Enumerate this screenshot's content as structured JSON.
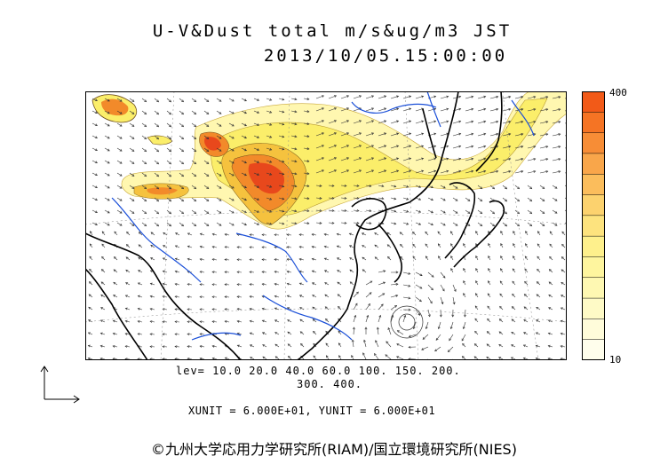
{
  "title_line1": "U-V&Dust total m/s&ug/m3 JST",
  "title_line2": "2013/10/05.15:00:00",
  "colorbar": {
    "max_label": "400",
    "min_label": "10",
    "colors": [
      "#f25a18",
      "#f57424",
      "#f78d36",
      "#f9a64a",
      "#fbbd5c",
      "#fcd26e",
      "#fde37e",
      "#fef08c",
      "#fef59e",
      "#fef8b2",
      "#fefac6",
      "#fffcda",
      "#fffeec"
    ]
  },
  "levels_line1": "lev= 10.0 20.0 40.0 60.0 100. 150. 200.",
  "levels_line2": "300. 400.",
  "units": "XUNIT = 6.000E+01, YUNIT = 6.000E+01",
  "credit": "©九州大学応用力学研究所(RIAM)/国立環境研究所(NIES)",
  "colors": {
    "land_outline": "#000000",
    "rivers": "#1a4fd8",
    "dust_low": "#fff7a8",
    "dust_mid": "#f7e64a",
    "dust_high": "#f28a2a",
    "dust_peak": "#e8481c"
  }
}
